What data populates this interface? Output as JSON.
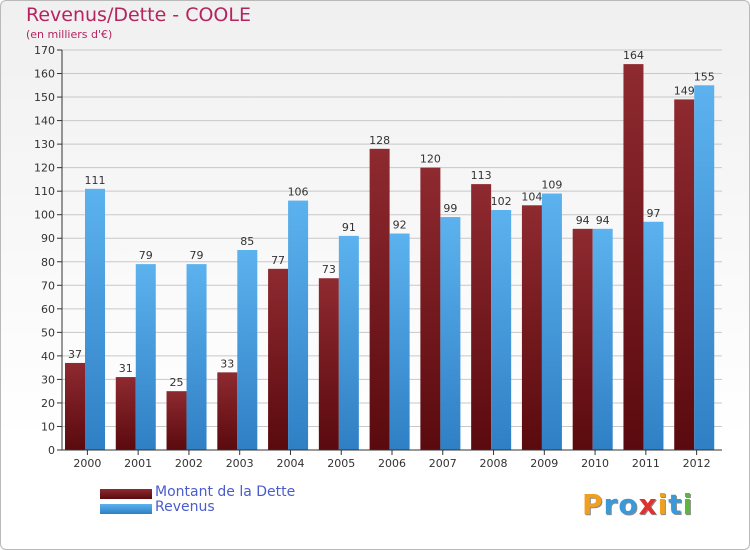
{
  "chart_data": {
    "type": "bar",
    "title": "Revenus/Dette - COOLE",
    "subtitle": "(en milliers d'€)",
    "categories": [
      "2000",
      "2001",
      "2002",
      "2003",
      "2004",
      "2005",
      "2006",
      "2007",
      "2008",
      "2009",
      "2010",
      "2011",
      "2012"
    ],
    "series": [
      {
        "name": "Montant de la Dette",
        "color": "#7a1a1f",
        "values": [
          37,
          31,
          25,
          33,
          77,
          73,
          128,
          120,
          113,
          104,
          94,
          164,
          149
        ]
      },
      {
        "name": "Revenus",
        "color": "#4aa3e2",
        "values": [
          111,
          79,
          79,
          85,
          106,
          91,
          92,
          99,
          102,
          109,
          94,
          97,
          155
        ]
      }
    ],
    "ylim": [
      0,
      170
    ],
    "yticks": [
      0,
      10,
      20,
      30,
      40,
      50,
      60,
      70,
      80,
      90,
      100,
      110,
      120,
      130,
      140,
      150,
      160,
      170
    ],
    "grid": true,
    "legend_position": "bottom-left"
  },
  "brand": {
    "letters": [
      "P",
      "r",
      "o",
      "x",
      "i",
      "t",
      "i"
    ],
    "colors": [
      "#f0a020",
      "#3a9ad9",
      "#3a9ad9",
      "#e03030",
      "#f0a020",
      "#3a9ad9",
      "#5cb83c"
    ]
  }
}
